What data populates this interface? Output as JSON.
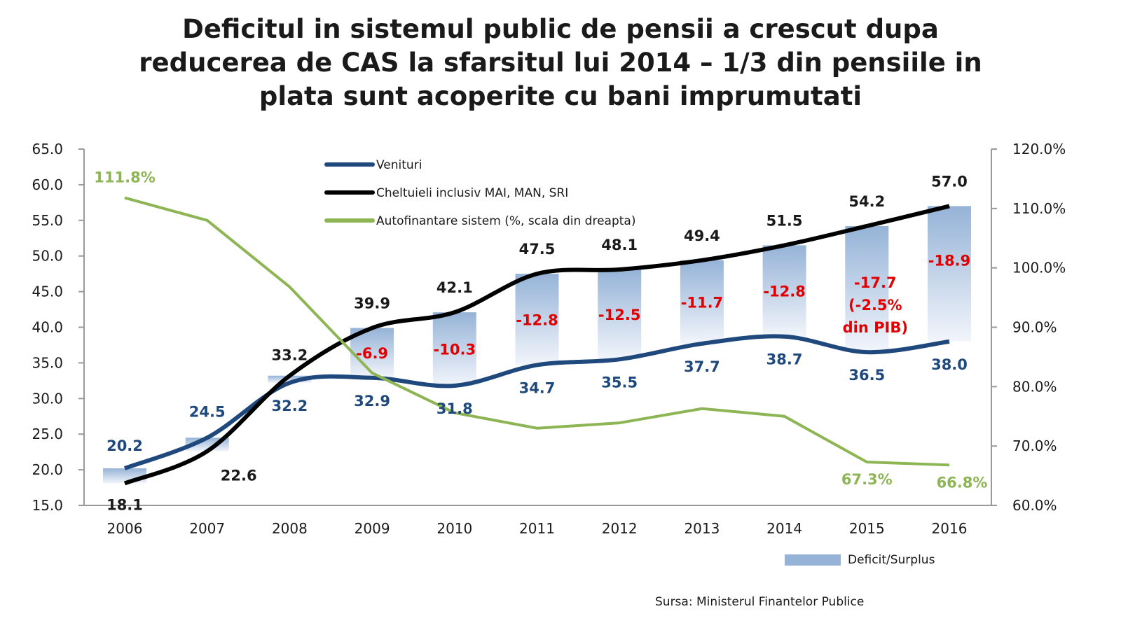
{
  "title_lines": [
    "Deficitul in sistemul public de pensii a crescut dupa",
    "reducerea de CAS la sfarsitul lui 2014 – 1/3 din pensiile in",
    "plata sunt acoperite cu bani imprumutati"
  ],
  "source": "Sursa: Ministerul Finantelor Publice",
  "colors": {
    "venituri": "#1f497d",
    "cheltuieli": "#000000",
    "autofinantare": "#8db554",
    "bar": "#95b3d7",
    "deficit_label": "#e00000"
  },
  "chart_data": {
    "type": "line",
    "title": "Deficitul in sistemul public de pensii a crescut dupa reducerea de CAS la sfarsitul lui 2014 – 1/3 din pensiile in plata sunt acoperite cu bani imprumutati",
    "categories": [
      "2006",
      "2007",
      "2008",
      "2009",
      "2010",
      "2011",
      "2012",
      "2013",
      "2014",
      "2015",
      "2016"
    ],
    "y_left": {
      "min": 15,
      "max": 65,
      "step": 5,
      "ticks": [
        "15.0",
        "20.0",
        "25.0",
        "30.0",
        "35.0",
        "40.0",
        "45.0",
        "50.0",
        "55.0",
        "60.0",
        "65.0"
      ]
    },
    "y_right": {
      "min": 60,
      "max": 120,
      "step": 10,
      "ticks": [
        "60.0%",
        "70.0%",
        "80.0%",
        "90.0%",
        "100.0%",
        "110.0%",
        "120.0%"
      ]
    },
    "series": [
      {
        "name": "Venituri",
        "axis": "left",
        "values": [
          20.2,
          24.5,
          32.2,
          32.9,
          31.8,
          34.7,
          35.5,
          37.7,
          38.7,
          36.5,
          38.0
        ],
        "labels": [
          "20.2",
          "24.5",
          "32.2",
          "32.9",
          "31.8",
          "34.7",
          "35.5",
          "37.7",
          "38.7",
          "36.5",
          "38.0"
        ]
      },
      {
        "name": "Cheltuieli inclusiv MAI, MAN, SRI",
        "axis": "left",
        "values": [
          18.1,
          22.6,
          33.2,
          39.9,
          42.1,
          47.5,
          48.1,
          49.4,
          51.5,
          54.2,
          57.0
        ],
        "labels": [
          "18.1",
          "22.6",
          "33.2",
          "39.9",
          "42.1",
          "47.5",
          "48.1",
          "49.4",
          "51.5",
          "54.2",
          "57.0"
        ]
      },
      {
        "name": "Autofinantare sistem (%, scala din dreapta)",
        "axis": "right",
        "values": [
          111.8,
          108.0,
          96.8,
          82.3,
          75.6,
          73.0,
          73.9,
          76.3,
          75.0,
          67.3,
          66.8
        ],
        "labels": [
          "111.8%",
          "",
          "",
          "",
          "",
          "",
          "",
          "",
          "",
          "67.3%",
          "66.8%"
        ]
      },
      {
        "name": "Deficit/Surplus",
        "type": "floating-bar",
        "axis": "left",
        "values": [
          2.1,
          1.9,
          -1.0,
          -6.9,
          -10.3,
          -12.8,
          -12.5,
          -11.7,
          -12.8,
          -17.7,
          -18.9
        ],
        "labels": [
          "",
          "",
          "",
          "-6.9",
          "-10.3",
          "-12.8",
          "-12.5",
          "-11.7",
          "-12.8",
          "-17.7 (-2.5% din PIB)",
          "-18.9"
        ]
      }
    ],
    "legend": [
      "Venituri",
      "Cheltuieli inclusiv MAI, MAN, SRI",
      "Autofinantare sistem (%, scala din dreapta)",
      "Deficit/Surplus"
    ],
    "legend_position": "top-center",
    "grid": false
  }
}
